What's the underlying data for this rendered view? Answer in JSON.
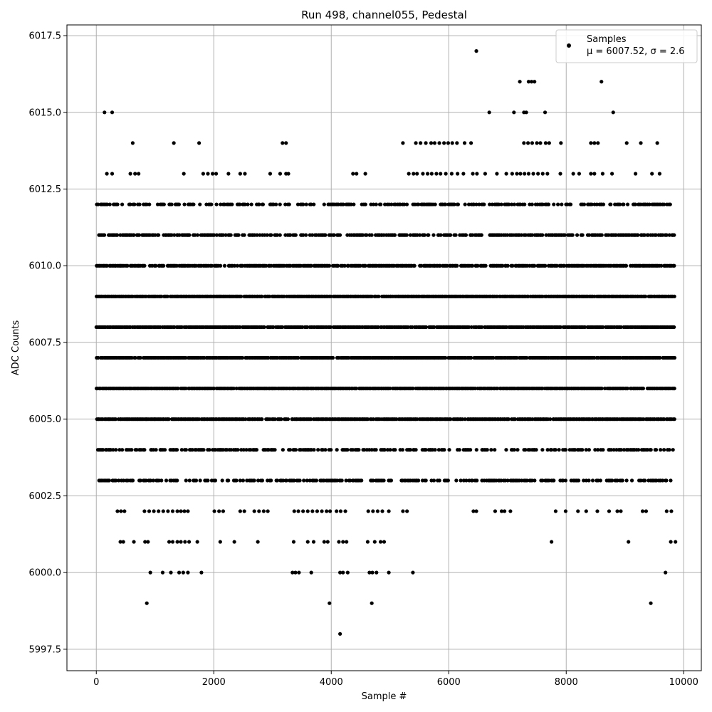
{
  "chart_data": {
    "type": "scatter",
    "title": "Run 498, channel055, Pedestal",
    "xlabel": "Sample #",
    "ylabel": "ADC Counts",
    "xlim": [
      -500,
      10300
    ],
    "ylim": [
      5996.8,
      6017.85
    ],
    "xticks": [
      0,
      2000,
      4000,
      6000,
      8000,
      10000
    ],
    "xtick_labels": [
      "0",
      "2000",
      "4000",
      "6000",
      "8000",
      "10000"
    ],
    "yticks": [
      5997.5,
      6000.0,
      6002.5,
      6005.0,
      6007.5,
      6010.0,
      6012.5,
      6015.0,
      6017.5
    ],
    "ytick_labels": [
      "5997.5",
      "6000.0",
      "6002.5",
      "6005.0",
      "6007.5",
      "6010.0",
      "6012.5",
      "6015.0",
      "6017.5"
    ],
    "grid": true,
    "legend": {
      "position": "top-right",
      "series_label": "Samples",
      "stats_label": "μ = 6007.52, σ = 2.6"
    },
    "series": [
      {
        "name": "Samples",
        "color": "#000000",
        "bands": [
          {
            "y": 6005,
            "x_range": [
              0,
              9840
            ],
            "density": 0.95
          },
          {
            "y": 6006,
            "x_range": [
              0,
              9840
            ],
            "density": 0.95
          },
          {
            "y": 6007,
            "x_range": [
              0,
              9840
            ],
            "density": 0.95
          },
          {
            "y": 6008,
            "x_range": [
              0,
              9840
            ],
            "density": 0.95
          },
          {
            "y": 6009,
            "x_range": [
              0,
              9840
            ],
            "density": 0.95
          },
          {
            "y": 6010,
            "x_range": [
              0,
              9840
            ],
            "density": 0.85
          },
          {
            "y": 6011,
            "x_range": [
              0,
              9840
            ],
            "density": 0.7
          },
          {
            "y": 6003,
            "x_range": [
              0,
              9840
            ],
            "density": 0.55
          },
          {
            "y": 6004,
            "x_range": [
              0,
              9840
            ],
            "density": 0.55
          },
          {
            "y": 6012,
            "x_range": [
              0,
              9840
            ],
            "density": 0.55
          }
        ],
        "points": [
          {
            "x": 140,
            "y": 6015
          },
          {
            "x": 270,
            "y": 6015
          },
          {
            "x": 6470,
            "y": 6017
          },
          {
            "x": 6690,
            "y": 6015
          },
          {
            "x": 7110,
            "y": 6015
          },
          {
            "x": 7280,
            "y": 6015
          },
          {
            "x": 7320,
            "y": 6015
          },
          {
            "x": 7640,
            "y": 6015
          },
          {
            "x": 8800,
            "y": 6015
          },
          {
            "x": 7210,
            "y": 6016
          },
          {
            "x": 7360,
            "y": 6016
          },
          {
            "x": 7410,
            "y": 6016
          },
          {
            "x": 7460,
            "y": 6016
          },
          {
            "x": 8600,
            "y": 6016
          },
          {
            "x": 620,
            "y": 6014
          },
          {
            "x": 1320,
            "y": 6014
          },
          {
            "x": 1750,
            "y": 6014
          },
          {
            "x": 3170,
            "y": 6014
          },
          {
            "x": 3230,
            "y": 6014
          },
          {
            "x": 5220,
            "y": 6014
          },
          {
            "x": 5440,
            "y": 6014
          },
          {
            "x": 5520,
            "y": 6014
          },
          {
            "x": 5610,
            "y": 6014
          },
          {
            "x": 5700,
            "y": 6014
          },
          {
            "x": 5760,
            "y": 6014
          },
          {
            "x": 5840,
            "y": 6014
          },
          {
            "x": 5920,
            "y": 6014
          },
          {
            "x": 5990,
            "y": 6014
          },
          {
            "x": 6060,
            "y": 6014
          },
          {
            "x": 6140,
            "y": 6014
          },
          {
            "x": 6270,
            "y": 6014
          },
          {
            "x": 6380,
            "y": 6014
          },
          {
            "x": 7280,
            "y": 6014
          },
          {
            "x": 7350,
            "y": 6014
          },
          {
            "x": 7420,
            "y": 6014
          },
          {
            "x": 7500,
            "y": 6014
          },
          {
            "x": 7560,
            "y": 6014
          },
          {
            "x": 7650,
            "y": 6014
          },
          {
            "x": 7710,
            "y": 6014
          },
          {
            "x": 7910,
            "y": 6014
          },
          {
            "x": 8420,
            "y": 6014
          },
          {
            "x": 8480,
            "y": 6014
          },
          {
            "x": 8540,
            "y": 6014
          },
          {
            "x": 9030,
            "y": 6014
          },
          {
            "x": 9270,
            "y": 6014
          },
          {
            "x": 9550,
            "y": 6014
          },
          {
            "x": 180,
            "y": 6013
          },
          {
            "x": 270,
            "y": 6013
          },
          {
            "x": 580,
            "y": 6013
          },
          {
            "x": 660,
            "y": 6013
          },
          {
            "x": 720,
            "y": 6013
          },
          {
            "x": 1490,
            "y": 6013
          },
          {
            "x": 1820,
            "y": 6013
          },
          {
            "x": 1900,
            "y": 6013
          },
          {
            "x": 1980,
            "y": 6013
          },
          {
            "x": 2040,
            "y": 6013
          },
          {
            "x": 2250,
            "y": 6013
          },
          {
            "x": 2450,
            "y": 6013
          },
          {
            "x": 2530,
            "y": 6013
          },
          {
            "x": 2960,
            "y": 6013
          },
          {
            "x": 3130,
            "y": 6013
          },
          {
            "x": 3230,
            "y": 6013
          },
          {
            "x": 3270,
            "y": 6013
          },
          {
            "x": 4370,
            "y": 6013
          },
          {
            "x": 4430,
            "y": 6013
          },
          {
            "x": 4580,
            "y": 6013
          },
          {
            "x": 5320,
            "y": 6013
          },
          {
            "x": 5400,
            "y": 6013
          },
          {
            "x": 5460,
            "y": 6013
          },
          {
            "x": 5560,
            "y": 6013
          },
          {
            "x": 5640,
            "y": 6013
          },
          {
            "x": 5710,
            "y": 6013
          },
          {
            "x": 5790,
            "y": 6013
          },
          {
            "x": 5860,
            "y": 6013
          },
          {
            "x": 5950,
            "y": 6013
          },
          {
            "x": 6050,
            "y": 6013
          },
          {
            "x": 6150,
            "y": 6013
          },
          {
            "x": 6250,
            "y": 6013
          },
          {
            "x": 6410,
            "y": 6013
          },
          {
            "x": 6480,
            "y": 6013
          },
          {
            "x": 6620,
            "y": 6013
          },
          {
            "x": 6820,
            "y": 6013
          },
          {
            "x": 6980,
            "y": 6013
          },
          {
            "x": 7080,
            "y": 6013
          },
          {
            "x": 7160,
            "y": 6013
          },
          {
            "x": 7220,
            "y": 6013
          },
          {
            "x": 7290,
            "y": 6013
          },
          {
            "x": 7360,
            "y": 6013
          },
          {
            "x": 7440,
            "y": 6013
          },
          {
            "x": 7520,
            "y": 6013
          },
          {
            "x": 7600,
            "y": 6013
          },
          {
            "x": 7680,
            "y": 6013
          },
          {
            "x": 7900,
            "y": 6013
          },
          {
            "x": 8120,
            "y": 6013
          },
          {
            "x": 8220,
            "y": 6013
          },
          {
            "x": 8420,
            "y": 6013
          },
          {
            "x": 8480,
            "y": 6013
          },
          {
            "x": 8620,
            "y": 6013
          },
          {
            "x": 8780,
            "y": 6013
          },
          {
            "x": 9180,
            "y": 6013
          },
          {
            "x": 9460,
            "y": 6013
          },
          {
            "x": 9590,
            "y": 6013
          },
          {
            "x": 360,
            "y": 6002
          },
          {
            "x": 420,
            "y": 6002
          },
          {
            "x": 480,
            "y": 6002
          },
          {
            "x": 820,
            "y": 6002
          },
          {
            "x": 900,
            "y": 6002
          },
          {
            "x": 980,
            "y": 6002
          },
          {
            "x": 1060,
            "y": 6002
          },
          {
            "x": 1140,
            "y": 6002
          },
          {
            "x": 1220,
            "y": 6002
          },
          {
            "x": 1300,
            "y": 6002
          },
          {
            "x": 1380,
            "y": 6002
          },
          {
            "x": 1440,
            "y": 6002
          },
          {
            "x": 1500,
            "y": 6002
          },
          {
            "x": 1560,
            "y": 6002
          },
          {
            "x": 2010,
            "y": 6002
          },
          {
            "x": 2090,
            "y": 6002
          },
          {
            "x": 2160,
            "y": 6002
          },
          {
            "x": 2450,
            "y": 6002
          },
          {
            "x": 2520,
            "y": 6002
          },
          {
            "x": 2690,
            "y": 6002
          },
          {
            "x": 2770,
            "y": 6002
          },
          {
            "x": 2850,
            "y": 6002
          },
          {
            "x": 2920,
            "y": 6002
          },
          {
            "x": 3370,
            "y": 6002
          },
          {
            "x": 3440,
            "y": 6002
          },
          {
            "x": 3520,
            "y": 6002
          },
          {
            "x": 3600,
            "y": 6002
          },
          {
            "x": 3680,
            "y": 6002
          },
          {
            "x": 3760,
            "y": 6002
          },
          {
            "x": 3840,
            "y": 6002
          },
          {
            "x": 3920,
            "y": 6002
          },
          {
            "x": 3980,
            "y": 6002
          },
          {
            "x": 4090,
            "y": 6002
          },
          {
            "x": 4160,
            "y": 6002
          },
          {
            "x": 4240,
            "y": 6002
          },
          {
            "x": 4630,
            "y": 6002
          },
          {
            "x": 4710,
            "y": 6002
          },
          {
            "x": 4790,
            "y": 6002
          },
          {
            "x": 4870,
            "y": 6002
          },
          {
            "x": 4980,
            "y": 6002
          },
          {
            "x": 5220,
            "y": 6002
          },
          {
            "x": 5290,
            "y": 6002
          },
          {
            "x": 6420,
            "y": 6002
          },
          {
            "x": 6470,
            "y": 6002
          },
          {
            "x": 6790,
            "y": 6002
          },
          {
            "x": 6900,
            "y": 6002
          },
          {
            "x": 6950,
            "y": 6002
          },
          {
            "x": 7050,
            "y": 6002
          },
          {
            "x": 7820,
            "y": 6002
          },
          {
            "x": 7990,
            "y": 6002
          },
          {
            "x": 8200,
            "y": 6002
          },
          {
            "x": 8340,
            "y": 6002
          },
          {
            "x": 8530,
            "y": 6002
          },
          {
            "x": 8730,
            "y": 6002
          },
          {
            "x": 8870,
            "y": 6002
          },
          {
            "x": 8930,
            "y": 6002
          },
          {
            "x": 9300,
            "y": 6002
          },
          {
            "x": 9360,
            "y": 6002
          },
          {
            "x": 9710,
            "y": 6002
          },
          {
            "x": 9790,
            "y": 6002
          },
          {
            "x": 410,
            "y": 6001
          },
          {
            "x": 460,
            "y": 6001
          },
          {
            "x": 640,
            "y": 6001
          },
          {
            "x": 830,
            "y": 6001
          },
          {
            "x": 880,
            "y": 6001
          },
          {
            "x": 1240,
            "y": 6001
          },
          {
            "x": 1300,
            "y": 6001
          },
          {
            "x": 1380,
            "y": 6001
          },
          {
            "x": 1440,
            "y": 6001
          },
          {
            "x": 1510,
            "y": 6001
          },
          {
            "x": 1580,
            "y": 6001
          },
          {
            "x": 1720,
            "y": 6001
          },
          {
            "x": 2110,
            "y": 6001
          },
          {
            "x": 2350,
            "y": 6001
          },
          {
            "x": 2750,
            "y": 6001
          },
          {
            "x": 3360,
            "y": 6001
          },
          {
            "x": 3600,
            "y": 6001
          },
          {
            "x": 3700,
            "y": 6001
          },
          {
            "x": 3880,
            "y": 6001
          },
          {
            "x": 3940,
            "y": 6001
          },
          {
            "x": 4130,
            "y": 6001
          },
          {
            "x": 4200,
            "y": 6001
          },
          {
            "x": 4260,
            "y": 6001
          },
          {
            "x": 4620,
            "y": 6001
          },
          {
            "x": 4740,
            "y": 6001
          },
          {
            "x": 4840,
            "y": 6001
          },
          {
            "x": 4900,
            "y": 6001
          },
          {
            "x": 7750,
            "y": 6001
          },
          {
            "x": 9060,
            "y": 6001
          },
          {
            "x": 9780,
            "y": 6001
          },
          {
            "x": 9860,
            "y": 6001
          },
          {
            "x": 920,
            "y": 6000
          },
          {
            "x": 1130,
            "y": 6000
          },
          {
            "x": 1270,
            "y": 6000
          },
          {
            "x": 1410,
            "y": 6000
          },
          {
            "x": 1480,
            "y": 6000
          },
          {
            "x": 1560,
            "y": 6000
          },
          {
            "x": 1790,
            "y": 6000
          },
          {
            "x": 3340,
            "y": 6000
          },
          {
            "x": 3390,
            "y": 6000
          },
          {
            "x": 3450,
            "y": 6000
          },
          {
            "x": 3660,
            "y": 6000
          },
          {
            "x": 4150,
            "y": 6000
          },
          {
            "x": 4200,
            "y": 6000
          },
          {
            "x": 4280,
            "y": 6000
          },
          {
            "x": 4650,
            "y": 6000
          },
          {
            "x": 4700,
            "y": 6000
          },
          {
            "x": 4770,
            "y": 6000
          },
          {
            "x": 4980,
            "y": 6000
          },
          {
            "x": 5390,
            "y": 6000
          },
          {
            "x": 9690,
            "y": 6000
          },
          {
            "x": 860,
            "y": 5999
          },
          {
            "x": 3970,
            "y": 5999
          },
          {
            "x": 4690,
            "y": 5999
          },
          {
            "x": 9440,
            "y": 5999
          },
          {
            "x": 4150,
            "y": 5998
          }
        ]
      }
    ]
  }
}
